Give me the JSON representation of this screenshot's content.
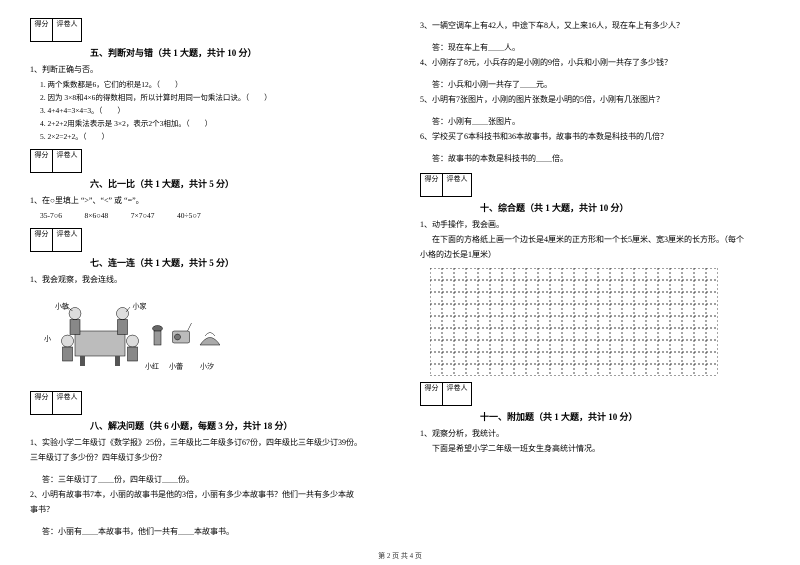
{
  "scorebox": {
    "col1": "得分",
    "col2": "评卷人"
  },
  "left": {
    "sec5": {
      "title": "五、判断对与错（共 1 大题，共计 10 分）",
      "q1": "1、判断正确与否。",
      "s1": "1. 两个乘数都是6，它们的积是12。（　　）",
      "s2": "2. 因为 3×8和4×6的得数相同，所以计算时用同一句乘法口诀。（　　）",
      "s3": "3. 4+4+4=3×4=3。（　　）",
      "s4": "4. 2+2+2用乘法表示是 3×2，表示2个3相加。（　　）",
      "s5": "5. 2×2=2+2。（　　）"
    },
    "sec6": {
      "title": "六、比一比（共 1 大题，共计 5 分）",
      "q1": "1、在○里填上 “>”、“<” 或 “=”。",
      "row": "35-7○6　　　8×6○48　　　7×7○47　　　40÷5○7"
    },
    "sec7": {
      "title": "七、连一连（共 1 大题，共计 5 分）",
      "q1": "1、我会观察，我会连线。",
      "labels": {
        "a": "小敏",
        "b": "小家",
        "c": "小红",
        "d": "小蕾",
        "e": "小汐"
      }
    },
    "sec8": {
      "title": "八、解决问题（共 6 小题，每题 3 分，共计 18 分）",
      "q1a": "1、实验小学二年级订《数学报》25份，三年级比二年级多订67份，四年级比三年级少订39份。",
      "q1b": "三年级订了多少份？四年级订多少份？",
      "a1": "答：三年级订了＿＿份，四年级订＿＿份。",
      "q2a": "2、小明有故事书7本，小丽的故事书是他的3倍，小丽有多少本故事书？他们一共有多少本故",
      "q2b": "事书？",
      "a2": "答：小丽有＿＿本故事书，他们一共有＿＿本故事书。"
    }
  },
  "right": {
    "q3": "3、一辆空调车上有42人，中途下车8人，又上来16人，现在车上有多少人？",
    "a3": "答：现在车上有＿＿人。",
    "q4": "4、小刚存了8元，小兵存的是小刚的9倍，小兵和小刚一共存了多少钱？",
    "a4": "答：小兵和小刚一共存了＿＿元。",
    "q5": "5、小明有7张图片，小刚的图片张数是小明的5倍，小刚有几张图片？",
    "a5": "答：小刚有＿＿张图片。",
    "q6": "6、学校买了6本科技书和36本故事书，故事书的本数是科技书的几倍？",
    "a6": "答：故事书的本数是科技书的＿＿倍。",
    "sec10": {
      "title": "十、综合题（共 1 大题，共计 10 分）",
      "q1": "1、动手操作，我会画。",
      "desc1": "在下面的方格纸上画一个边长是4厘米的正方形和一个长5厘米、宽3厘米的长方形。（每个",
      "desc2": "小格的边长是1厘米）"
    },
    "sec11": {
      "title": "十一、附加题（共 1 大题，共计 10 分）",
      "q1": "1、观察分析，我统计。",
      "desc": "下面是希望小学二年级一班女生身高统计情况。"
    },
    "grid": {
      "cols": 24,
      "rows": 9,
      "cell": 12,
      "stroke": "#000000",
      "dash": "2,2"
    }
  },
  "footer": "第 2 页 共 4 页"
}
